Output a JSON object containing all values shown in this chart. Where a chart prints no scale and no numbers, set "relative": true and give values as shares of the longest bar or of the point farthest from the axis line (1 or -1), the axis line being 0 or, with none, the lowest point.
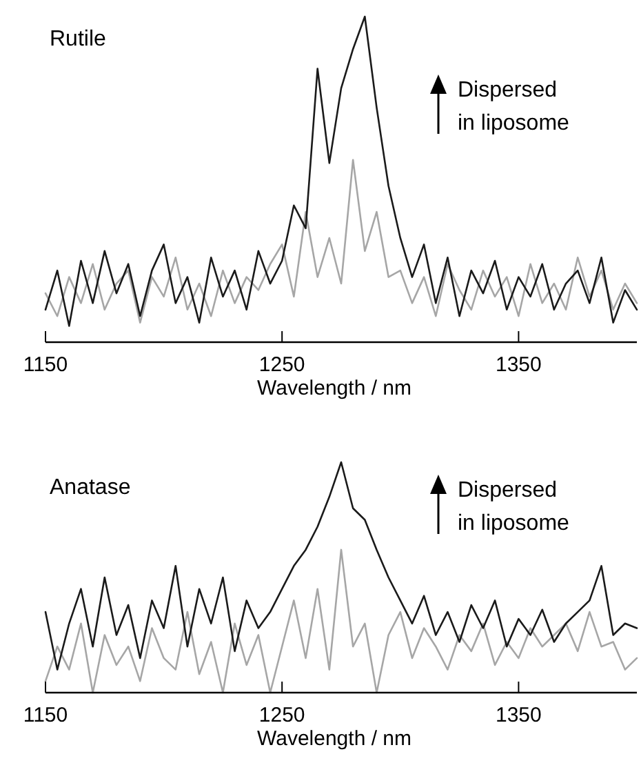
{
  "chart_data": [
    {
      "type": "line",
      "title": "Rutile",
      "xlabel": "Wavelength / nm",
      "relative": true,
      "xlim": [
        1150,
        1400
      ],
      "xticks": [
        1150,
        1250,
        1350
      ],
      "annotations": [
        "Dispersed\nin liposome"
      ],
      "x": [
        1150,
        1155,
        1160,
        1165,
        1170,
        1175,
        1180,
        1185,
        1190,
        1195,
        1200,
        1205,
        1210,
        1215,
        1220,
        1225,
        1230,
        1235,
        1240,
        1245,
        1250,
        1255,
        1260,
        1265,
        1270,
        1275,
        1280,
        1285,
        1290,
        1295,
        1300,
        1305,
        1310,
        1315,
        1320,
        1325,
        1330,
        1335,
        1340,
        1345,
        1350,
        1355,
        1360,
        1365,
        1370,
        1375,
        1380,
        1385,
        1390,
        1395,
        1400
      ],
      "series": [
        {
          "color": "#a6a6a6",
          "values": [
            0.15,
            0.08,
            0.2,
            0.12,
            0.24,
            0.1,
            0.18,
            0.22,
            0.06,
            0.2,
            0.14,
            0.26,
            0.1,
            0.18,
            0.08,
            0.22,
            0.12,
            0.2,
            0.16,
            0.24,
            0.3,
            0.14,
            0.4,
            0.2,
            0.32,
            0.18,
            0.56,
            0.28,
            0.4,
            0.2,
            0.22,
            0.12,
            0.2,
            0.08,
            0.24,
            0.16,
            0.1,
            0.22,
            0.14,
            0.2,
            0.08,
            0.24,
            0.12,
            0.18,
            0.1,
            0.26,
            0.14,
            0.22,
            0.1,
            0.18,
            0.12
          ]
        },
        {
          "color": "#1a1a1a",
          "values": [
            0.1,
            0.22,
            0.05,
            0.25,
            0.12,
            0.28,
            0.15,
            0.24,
            0.08,
            0.22,
            0.3,
            0.12,
            0.2,
            0.06,
            0.26,
            0.14,
            0.22,
            0.1,
            0.28,
            0.18,
            0.25,
            0.42,
            0.35,
            0.84,
            0.55,
            0.78,
            0.9,
            1.0,
            0.72,
            0.48,
            0.32,
            0.2,
            0.3,
            0.12,
            0.26,
            0.08,
            0.22,
            0.15,
            0.25,
            0.1,
            0.2,
            0.14,
            0.24,
            0.1,
            0.18,
            0.22,
            0.12,
            0.26,
            0.06,
            0.16,
            0.1
          ]
        }
      ]
    },
    {
      "type": "line",
      "title": "Anatase",
      "xlabel": "Wavelength / nm",
      "relative": true,
      "xlim": [
        1150,
        1400
      ],
      "xticks": [
        1150,
        1250,
        1350
      ],
      "annotations": [
        "Dispersed\nin liposome"
      ],
      "x": [
        1150,
        1155,
        1160,
        1165,
        1170,
        1175,
        1180,
        1185,
        1190,
        1195,
        1200,
        1205,
        1210,
        1215,
        1220,
        1225,
        1230,
        1235,
        1240,
        1245,
        1250,
        1255,
        1260,
        1265,
        1270,
        1275,
        1280,
        1285,
        1290,
        1295,
        1300,
        1305,
        1310,
        1315,
        1320,
        1325,
        1330,
        1335,
        1340,
        1345,
        1350,
        1355,
        1360,
        1365,
        1370,
        1375,
        1380,
        1385,
        1390,
        1395,
        1400
      ],
      "series": [
        {
          "color": "#a6a6a6",
          "values": [
            0.05,
            0.2,
            0.1,
            0.3,
            0.0,
            0.25,
            0.12,
            0.2,
            0.05,
            0.28,
            0.15,
            0.1,
            0.35,
            0.08,
            0.22,
            0.0,
            0.3,
            0.12,
            0.25,
            0.0,
            0.2,
            0.4,
            0.15,
            0.45,
            0.1,
            0.62,
            0.2,
            0.3,
            0.0,
            0.25,
            0.35,
            0.15,
            0.28,
            0.2,
            0.1,
            0.25,
            0.18,
            0.3,
            0.12,
            0.22,
            0.15,
            0.28,
            0.2,
            0.25,
            0.3,
            0.18,
            0.35,
            0.2,
            0.22,
            0.1,
            0.15
          ]
        },
        {
          "color": "#1a1a1a",
          "values": [
            0.35,
            0.1,
            0.3,
            0.45,
            0.2,
            0.5,
            0.25,
            0.38,
            0.15,
            0.4,
            0.28,
            0.55,
            0.2,
            0.45,
            0.3,
            0.5,
            0.18,
            0.4,
            0.28,
            0.35,
            0.45,
            0.55,
            0.62,
            0.72,
            0.85,
            1.0,
            0.8,
            0.75,
            0.62,
            0.5,
            0.4,
            0.3,
            0.42,
            0.25,
            0.35,
            0.22,
            0.38,
            0.28,
            0.4,
            0.2,
            0.32,
            0.25,
            0.36,
            0.22,
            0.3,
            0.35,
            0.4,
            0.55,
            0.25,
            0.3,
            0.28
          ]
        }
      ]
    }
  ]
}
